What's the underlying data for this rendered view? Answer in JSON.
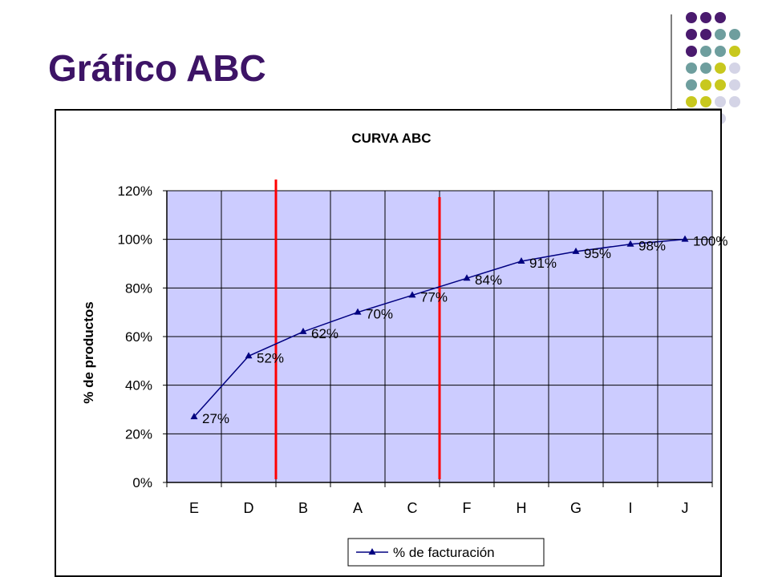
{
  "slide": {
    "title": "Gráfico ABC"
  },
  "colors": {
    "title": "#3d1466",
    "dot_purple": "#4a1a6e",
    "dot_teal": "#6e9e9e",
    "dot_yellow": "#c8c81e",
    "dot_lavender": "#d4d4e6",
    "plot_bg": "#ccccff",
    "series": "#000080",
    "marker_line": "#ff0000"
  },
  "chart_data": {
    "type": "line",
    "title": "CURVA ABC",
    "xlabel": "",
    "ylabel": "% de productos",
    "categories": [
      "E",
      "D",
      "B",
      "A",
      "C",
      "F",
      "H",
      "G",
      "I",
      "J"
    ],
    "series": [
      {
        "name": "% de facturación",
        "values": [
          27,
          52,
          62,
          70,
          77,
          84,
          91,
          95,
          98,
          100
        ],
        "labels": [
          "27%",
          "52%",
          "62%",
          "70%",
          "77%",
          "84%",
          "91%",
          "95%",
          "98%",
          "100%"
        ]
      }
    ],
    "ylim": [
      0,
      120
    ],
    "yticks": [
      0,
      20,
      40,
      60,
      80,
      100,
      120
    ],
    "ytick_labels": [
      "0%",
      "20%",
      "40%",
      "60%",
      "80%",
      "100%",
      "120%"
    ],
    "grid": true,
    "legend_position": "bottom",
    "annotations": [
      {
        "type": "vertical-line",
        "after_category": "D"
      },
      {
        "type": "vertical-line",
        "after_category": "C"
      }
    ]
  }
}
